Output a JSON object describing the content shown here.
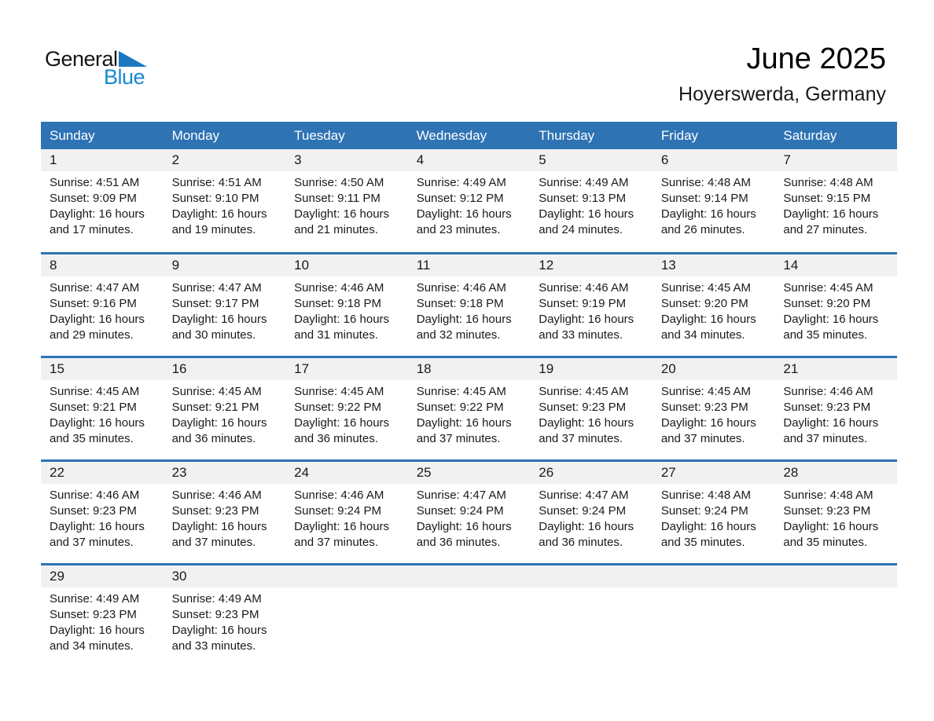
{
  "logo": {
    "text_general": "General",
    "text_blue": "Blue"
  },
  "header": {
    "title": "June 2025",
    "subtitle": "Hoyerswerda, Germany"
  },
  "colors": {
    "header_blue": "#2E73B4",
    "row_border_blue": "#2E73B4",
    "day_strip_gray": "#F1F1F1",
    "logo_blue": "#1789CE",
    "logo_triangle_blue": "#1B77C0"
  },
  "calendar": {
    "weekday_headers": [
      "Sunday",
      "Monday",
      "Tuesday",
      "Wednesday",
      "Thursday",
      "Friday",
      "Saturday"
    ],
    "weeks": [
      [
        {
          "day": "1",
          "sunrise": "Sunrise: 4:51 AM",
          "sunset": "Sunset: 9:09 PM",
          "daylight1": "Daylight: 16 hours",
          "daylight2": "and 17 minutes."
        },
        {
          "day": "2",
          "sunrise": "Sunrise: 4:51 AM",
          "sunset": "Sunset: 9:10 PM",
          "daylight1": "Daylight: 16 hours",
          "daylight2": "and 19 minutes."
        },
        {
          "day": "3",
          "sunrise": "Sunrise: 4:50 AM",
          "sunset": "Sunset: 9:11 PM",
          "daylight1": "Daylight: 16 hours",
          "daylight2": "and 21 minutes."
        },
        {
          "day": "4",
          "sunrise": "Sunrise: 4:49 AM",
          "sunset": "Sunset: 9:12 PM",
          "daylight1": "Daylight: 16 hours",
          "daylight2": "and 23 minutes."
        },
        {
          "day": "5",
          "sunrise": "Sunrise: 4:49 AM",
          "sunset": "Sunset: 9:13 PM",
          "daylight1": "Daylight: 16 hours",
          "daylight2": "and 24 minutes."
        },
        {
          "day": "6",
          "sunrise": "Sunrise: 4:48 AM",
          "sunset": "Sunset: 9:14 PM",
          "daylight1": "Daylight: 16 hours",
          "daylight2": "and 26 minutes."
        },
        {
          "day": "7",
          "sunrise": "Sunrise: 4:48 AM",
          "sunset": "Sunset: 9:15 PM",
          "daylight1": "Daylight: 16 hours",
          "daylight2": "and 27 minutes."
        }
      ],
      [
        {
          "day": "8",
          "sunrise": "Sunrise: 4:47 AM",
          "sunset": "Sunset: 9:16 PM",
          "daylight1": "Daylight: 16 hours",
          "daylight2": "and 29 minutes."
        },
        {
          "day": "9",
          "sunrise": "Sunrise: 4:47 AM",
          "sunset": "Sunset: 9:17 PM",
          "daylight1": "Daylight: 16 hours",
          "daylight2": "and 30 minutes."
        },
        {
          "day": "10",
          "sunrise": "Sunrise: 4:46 AM",
          "sunset": "Sunset: 9:18 PM",
          "daylight1": "Daylight: 16 hours",
          "daylight2": "and 31 minutes."
        },
        {
          "day": "11",
          "sunrise": "Sunrise: 4:46 AM",
          "sunset": "Sunset: 9:18 PM",
          "daylight1": "Daylight: 16 hours",
          "daylight2": "and 32 minutes."
        },
        {
          "day": "12",
          "sunrise": "Sunrise: 4:46 AM",
          "sunset": "Sunset: 9:19 PM",
          "daylight1": "Daylight: 16 hours",
          "daylight2": "and 33 minutes."
        },
        {
          "day": "13",
          "sunrise": "Sunrise: 4:45 AM",
          "sunset": "Sunset: 9:20 PM",
          "daylight1": "Daylight: 16 hours",
          "daylight2": "and 34 minutes."
        },
        {
          "day": "14",
          "sunrise": "Sunrise: 4:45 AM",
          "sunset": "Sunset: 9:20 PM",
          "daylight1": "Daylight: 16 hours",
          "daylight2": "and 35 minutes."
        }
      ],
      [
        {
          "day": "15",
          "sunrise": "Sunrise: 4:45 AM",
          "sunset": "Sunset: 9:21 PM",
          "daylight1": "Daylight: 16 hours",
          "daylight2": "and 35 minutes."
        },
        {
          "day": "16",
          "sunrise": "Sunrise: 4:45 AM",
          "sunset": "Sunset: 9:21 PM",
          "daylight1": "Daylight: 16 hours",
          "daylight2": "and 36 minutes."
        },
        {
          "day": "17",
          "sunrise": "Sunrise: 4:45 AM",
          "sunset": "Sunset: 9:22 PM",
          "daylight1": "Daylight: 16 hours",
          "daylight2": "and 36 minutes."
        },
        {
          "day": "18",
          "sunrise": "Sunrise: 4:45 AM",
          "sunset": "Sunset: 9:22 PM",
          "daylight1": "Daylight: 16 hours",
          "daylight2": "and 37 minutes."
        },
        {
          "day": "19",
          "sunrise": "Sunrise: 4:45 AM",
          "sunset": "Sunset: 9:23 PM",
          "daylight1": "Daylight: 16 hours",
          "daylight2": "and 37 minutes."
        },
        {
          "day": "20",
          "sunrise": "Sunrise: 4:45 AM",
          "sunset": "Sunset: 9:23 PM",
          "daylight1": "Daylight: 16 hours",
          "daylight2": "and 37 minutes."
        },
        {
          "day": "21",
          "sunrise": "Sunrise: 4:46 AM",
          "sunset": "Sunset: 9:23 PM",
          "daylight1": "Daylight: 16 hours",
          "daylight2": "and 37 minutes."
        }
      ],
      [
        {
          "day": "22",
          "sunrise": "Sunrise: 4:46 AM",
          "sunset": "Sunset: 9:23 PM",
          "daylight1": "Daylight: 16 hours",
          "daylight2": "and 37 minutes."
        },
        {
          "day": "23",
          "sunrise": "Sunrise: 4:46 AM",
          "sunset": "Sunset: 9:23 PM",
          "daylight1": "Daylight: 16 hours",
          "daylight2": "and 37 minutes."
        },
        {
          "day": "24",
          "sunrise": "Sunrise: 4:46 AM",
          "sunset": "Sunset: 9:24 PM",
          "daylight1": "Daylight: 16 hours",
          "daylight2": "and 37 minutes."
        },
        {
          "day": "25",
          "sunrise": "Sunrise: 4:47 AM",
          "sunset": "Sunset: 9:24 PM",
          "daylight1": "Daylight: 16 hours",
          "daylight2": "and 36 minutes."
        },
        {
          "day": "26",
          "sunrise": "Sunrise: 4:47 AM",
          "sunset": "Sunset: 9:24 PM",
          "daylight1": "Daylight: 16 hours",
          "daylight2": "and 36 minutes."
        },
        {
          "day": "27",
          "sunrise": "Sunrise: 4:48 AM",
          "sunset": "Sunset: 9:24 PM",
          "daylight1": "Daylight: 16 hours",
          "daylight2": "and 35 minutes."
        },
        {
          "day": "28",
          "sunrise": "Sunrise: 4:48 AM",
          "sunset": "Sunset: 9:23 PM",
          "daylight1": "Daylight: 16 hours",
          "daylight2": "and 35 minutes."
        }
      ],
      [
        {
          "day": "29",
          "sunrise": "Sunrise: 4:49 AM",
          "sunset": "Sunset: 9:23 PM",
          "daylight1": "Daylight: 16 hours",
          "daylight2": "and 34 minutes."
        },
        {
          "day": "30",
          "sunrise": "Sunrise: 4:49 AM",
          "sunset": "Sunset: 9:23 PM",
          "daylight1": "Daylight: 16 hours",
          "daylight2": "and 33 minutes."
        },
        null,
        null,
        null,
        null,
        null
      ]
    ]
  }
}
